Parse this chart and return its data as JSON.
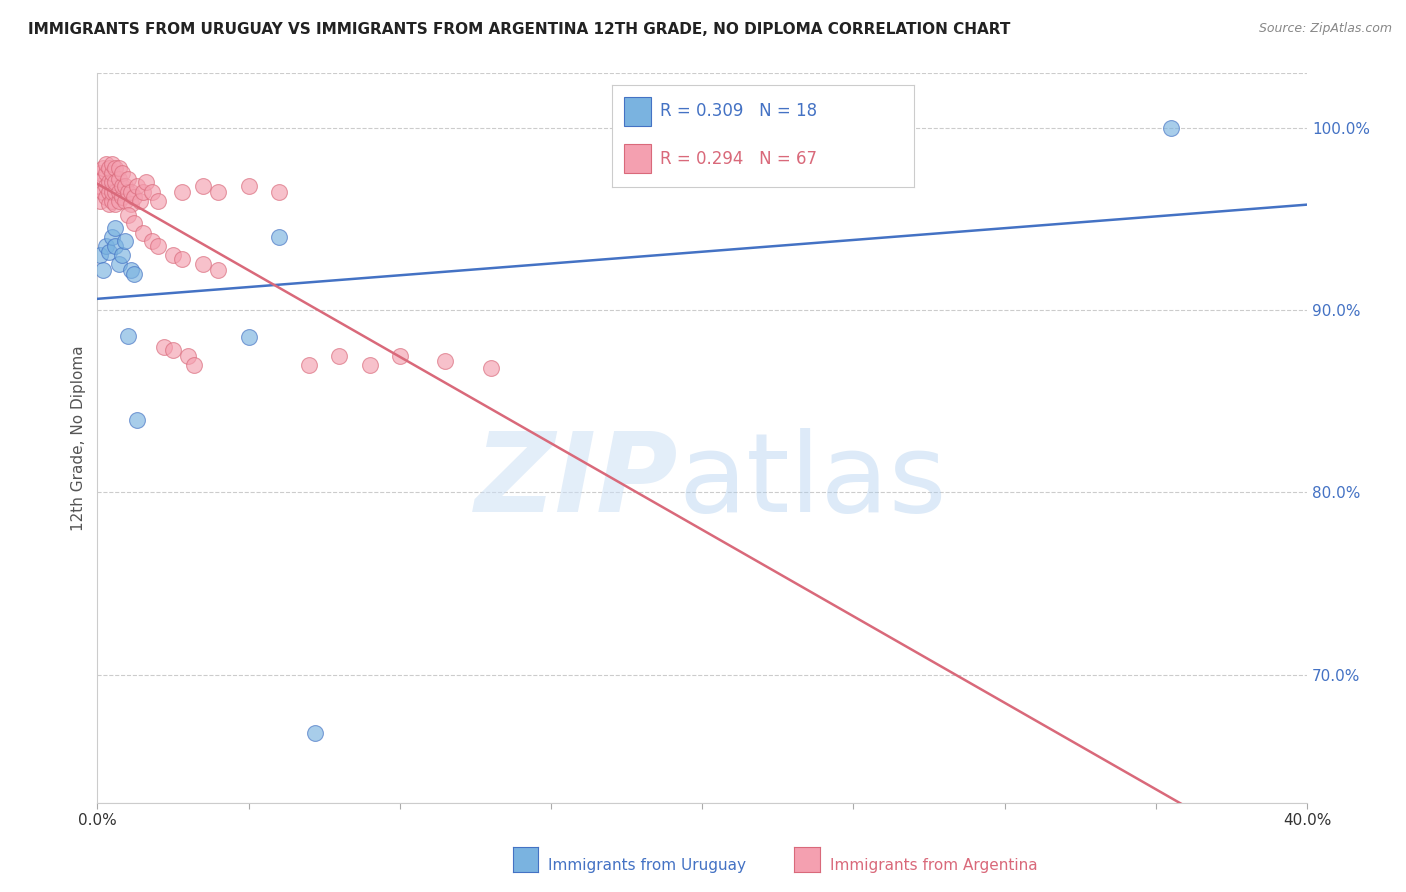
{
  "title": "IMMIGRANTS FROM URUGUAY VS IMMIGRANTS FROM ARGENTINA 12TH GRADE, NO DIPLOMA CORRELATION CHART",
  "source": "Source: ZipAtlas.com",
  "ylabel_left": "12th Grade, No Diploma",
  "xlim": [
    0.0,
    0.4
  ],
  "ylim": [
    0.63,
    1.03
  ],
  "right_yticks": [
    0.7,
    0.8,
    0.9,
    1.0
  ],
  "right_yticklabels": [
    "70.0%",
    "80.0%",
    "90.0%",
    "100.0%"
  ],
  "legend_r_uruguay": "0.309",
  "legend_n_uruguay": "18",
  "legend_r_argentina": "0.294",
  "legend_n_argentina": "67",
  "legend_label_uruguay": "Immigrants from Uruguay",
  "legend_label_argentina": "Immigrants from Argentina",
  "color_uruguay": "#7ab3e0",
  "color_argentina": "#f4a0b0",
  "color_line_uruguay": "#4472c4",
  "color_line_argentina": "#d9697a",
  "color_right_axis": "#4472c4",
  "color_title": "#222222",
  "background": "#ffffff",
  "grid_color": "#cccccc",
  "uruguay_x": [
    0.001,
    0.002,
    0.003,
    0.004,
    0.005,
    0.006,
    0.006,
    0.007,
    0.008,
    0.009,
    0.01,
    0.011,
    0.012,
    0.013,
    0.05,
    0.06,
    0.072,
    0.355
  ],
  "uruguay_y": [
    0.93,
    0.922,
    0.935,
    0.932,
    0.94,
    0.935,
    0.945,
    0.925,
    0.93,
    0.938,
    0.886,
    0.922,
    0.92,
    0.84,
    0.885,
    0.94,
    0.668,
    1.0
  ],
  "argentina_x": [
    0.001,
    0.001,
    0.001,
    0.002,
    0.002,
    0.002,
    0.003,
    0.003,
    0.003,
    0.003,
    0.004,
    0.004,
    0.004,
    0.004,
    0.005,
    0.005,
    0.005,
    0.005,
    0.005,
    0.006,
    0.006,
    0.006,
    0.006,
    0.007,
    0.007,
    0.007,
    0.007,
    0.008,
    0.008,
    0.008,
    0.009,
    0.009,
    0.01,
    0.01,
    0.011,
    0.011,
    0.012,
    0.013,
    0.014,
    0.015,
    0.016,
    0.018,
    0.02,
    0.022,
    0.025,
    0.028,
    0.03,
    0.032,
    0.035,
    0.04,
    0.01,
    0.012,
    0.015,
    0.018,
    0.02,
    0.025,
    0.028,
    0.035,
    0.04,
    0.05,
    0.06,
    0.07,
    0.08,
    0.09,
    0.1,
    0.115,
    0.13
  ],
  "argentina_y": [
    0.96,
    0.968,
    0.975,
    0.965,
    0.972,
    0.978,
    0.962,
    0.968,
    0.975,
    0.98,
    0.958,
    0.965,
    0.97,
    0.978,
    0.96,
    0.965,
    0.97,
    0.975,
    0.98,
    0.958,
    0.965,
    0.97,
    0.978,
    0.96,
    0.965,
    0.972,
    0.978,
    0.962,
    0.968,
    0.975,
    0.96,
    0.968,
    0.965,
    0.972,
    0.958,
    0.965,
    0.962,
    0.968,
    0.96,
    0.965,
    0.97,
    0.965,
    0.96,
    0.88,
    0.878,
    0.965,
    0.875,
    0.87,
    0.968,
    0.965,
    0.952,
    0.948,
    0.942,
    0.938,
    0.935,
    0.93,
    0.928,
    0.925,
    0.922,
    0.968,
    0.965,
    0.87,
    0.875,
    0.87,
    0.875,
    0.872,
    0.868
  ]
}
